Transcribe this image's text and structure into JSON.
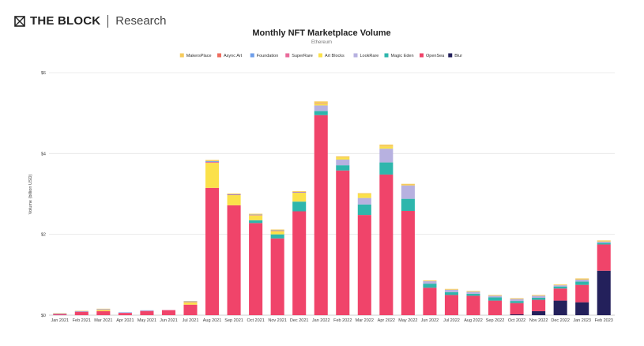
{
  "brand": {
    "name": "THE BLOCK",
    "sub": "Research",
    "logo_icon": "cube-logo-icon"
  },
  "chart_data": {
    "type": "bar",
    "stacked": true,
    "title": "Monthly NFT Marketplace Volume",
    "subtitle": "Ethereum",
    "xlabel": "",
    "ylabel": "Volume (billion USD)",
    "ylim": [
      0,
      6
    ],
    "yticks": [
      0,
      2,
      4,
      6
    ],
    "ytick_labels": [
      "$0",
      "$2",
      "$4",
      "$6"
    ],
    "grid": true,
    "legend_position": "top-center",
    "categories": [
      "Jan 2021",
      "Feb 2021",
      "Mar 2021",
      "Apr 2021",
      "May 2021",
      "Jun 2021",
      "Jul 2021",
      "Aug 2021",
      "Sep 2021",
      "Oct 2021",
      "Nov 2021",
      "Dec 2021",
      "Jan 2022",
      "Feb 2022",
      "Mar 2022",
      "Apr 2022",
      "May 2022",
      "Jun 2022",
      "Jul 2022",
      "Aug 2022",
      "Sep 2022",
      "Oct 2022",
      "Nov 2022",
      "Dec 2022",
      "Jan 2023",
      "Feb 2023"
    ],
    "series": [
      {
        "name": "Blur",
        "color": "#23205b",
        "values": [
          0,
          0,
          0,
          0,
          0,
          0,
          0,
          0,
          0,
          0,
          0,
          0,
          0,
          0,
          0,
          0,
          0,
          0,
          0,
          0,
          0,
          0.02,
          0.1,
          0.36,
          0.32,
          1.1
        ]
      },
      {
        "name": "OpenSea",
        "color": "#f0446a",
        "values": [
          0.02,
          0.08,
          0.1,
          0.05,
          0.1,
          0.12,
          0.26,
          3.15,
          2.72,
          2.28,
          1.9,
          2.57,
          4.95,
          3.58,
          2.48,
          3.48,
          2.58,
          0.68,
          0.5,
          0.48,
          0.36,
          0.28,
          0.28,
          0.3,
          0.43,
          0.65
        ]
      },
      {
        "name": "Magic Eden",
        "color": "#2eb6ac",
        "values": [
          0,
          0,
          0,
          0,
          0,
          0,
          0,
          0,
          0,
          0.07,
          0.1,
          0.24,
          0.1,
          0.13,
          0.26,
          0.3,
          0.3,
          0.1,
          0.07,
          0.05,
          0.08,
          0.05,
          0.05,
          0.05,
          0.08,
          0.04
        ]
      },
      {
        "name": "LookRare",
        "color": "#b7b1e0",
        "values": [
          0,
          0,
          0,
          0,
          0,
          0,
          0,
          0,
          0,
          0,
          0,
          0,
          0.14,
          0.14,
          0.16,
          0.34,
          0.33,
          0.06,
          0.06,
          0.05,
          0.04,
          0.05,
          0.05,
          0.03,
          0.05,
          0.03
        ]
      },
      {
        "name": "Art Blocks",
        "color": "#fbe14a",
        "values": [
          0,
          0,
          0.03,
          0,
          0,
          0,
          0.06,
          0.62,
          0.25,
          0.12,
          0.08,
          0.22,
          0.04,
          0.05,
          0.1,
          0.05,
          0,
          0,
          0,
          0,
          0,
          0,
          0,
          0,
          0,
          0
        ]
      },
      {
        "name": "SuperRare",
        "color": "#e96a9a",
        "values": [
          0.01,
          0.01,
          0.01,
          0.01,
          0.01,
          0.01,
          0.01,
          0.02,
          0.01,
          0.01,
          0.01,
          0.01,
          0.01,
          0,
          0,
          0,
          0,
          0,
          0,
          0,
          0,
          0,
          0,
          0,
          0,
          0
        ]
      },
      {
        "name": "Foundation",
        "color": "#6e9eea",
        "values": [
          0.01,
          0.01,
          0.01,
          0.01,
          0.01,
          0,
          0.01,
          0.02,
          0.01,
          0.01,
          0.01,
          0.01,
          0,
          0,
          0,
          0,
          0,
          0,
          0,
          0,
          0,
          0,
          0,
          0,
          0,
          0
        ]
      },
      {
        "name": "Async Art",
        "color": "#ee6c5e",
        "values": [
          0,
          0,
          0,
          0,
          0,
          0,
          0,
          0,
          0,
          0,
          0,
          0,
          0,
          0,
          0,
          0,
          0,
          0,
          0,
          0,
          0,
          0,
          0,
          0,
          0,
          0
        ]
      },
      {
        "name": "MakersPlace",
        "color": "#f6cb5c",
        "values": [
          0.01,
          0.01,
          0.01,
          0,
          0,
          0,
          0.01,
          0.03,
          0.02,
          0.02,
          0.02,
          0.02,
          0.05,
          0.03,
          0.02,
          0.05,
          0.04,
          0.02,
          0.02,
          0.02,
          0.02,
          0.02,
          0.02,
          0.02,
          0.03,
          0.03
        ]
      }
    ],
    "legend_order": [
      "MakersPlace",
      "Async Art",
      "Foundation",
      "SuperRare",
      "Art Blocks",
      "LookRare",
      "Magic Eden",
      "OpenSea",
      "Blur"
    ]
  }
}
